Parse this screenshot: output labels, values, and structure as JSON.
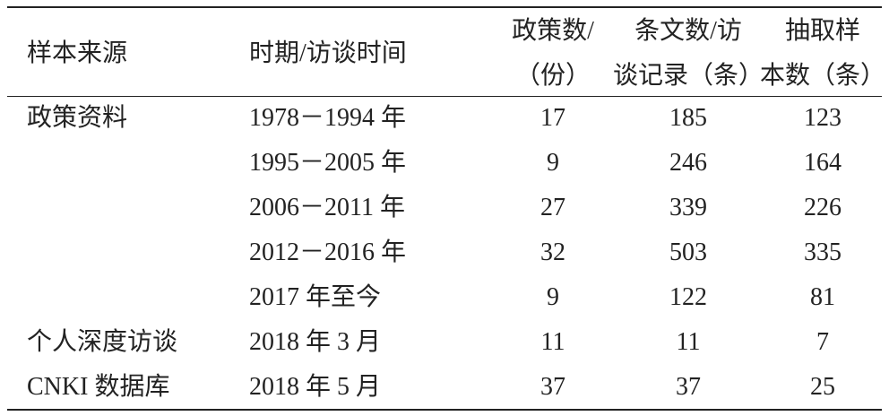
{
  "table": {
    "header": [
      {
        "lines": [
          "样本来源"
        ]
      },
      {
        "lines": [
          "时期/访谈时间"
        ]
      },
      {
        "lines": [
          "政策数/",
          "（份）"
        ]
      },
      {
        "lines": [
          "条文数/访",
          "谈记录（条）"
        ]
      },
      {
        "lines": [
          "抽取样",
          "本数（条）"
        ]
      }
    ],
    "groups": [
      {
        "source": "政策资料",
        "rows": [
          [
            "1978－1994 年",
            17,
            185,
            123
          ],
          [
            "1995－2005 年",
            9,
            246,
            164
          ],
          [
            "2006－2011 年",
            27,
            339,
            226
          ],
          [
            "2012－2016 年",
            32,
            503,
            335
          ],
          [
            "2017 年至今",
            9,
            122,
            81
          ]
        ]
      },
      {
        "source": "个人深度访谈",
        "rows": [
          [
            "2018 年 3 月",
            11,
            11,
            7
          ]
        ]
      },
      {
        "source": "CNKI 数据库",
        "rows": [
          [
            "2018 年 5 月",
            37,
            37,
            25
          ]
        ]
      }
    ]
  }
}
